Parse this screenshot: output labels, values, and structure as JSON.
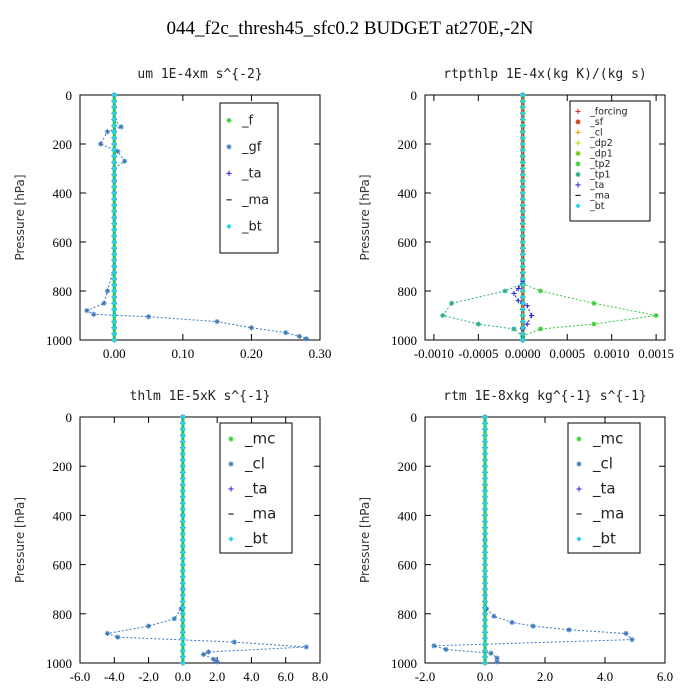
{
  "title": "044_f2c_thresh45_sfc0.2  BUDGET at270E,-2N",
  "chart_data": [
    {
      "type": "line",
      "title": "um   1E-4xm s^{-2}",
      "ylabel": "Pressure [hPa]",
      "xlim": [
        -0.05,
        0.3
      ],
      "ylim": [
        1000,
        0
      ],
      "xticks": [
        "0.00",
        "0.10",
        "0.20",
        "0.30"
      ],
      "xtick_values": [
        0,
        0.1,
        0.2,
        0.3
      ],
      "yticks": [
        "0",
        "200",
        "400",
        "600",
        "800",
        "1000"
      ],
      "legend_position": "top-right",
      "series": [
        {
          "name": "_f",
          "color": "#33cc33",
          "marker": "star",
          "x": [
            0,
            0,
            0,
            0,
            0,
            0,
            0,
            0,
            0,
            0,
            0
          ],
          "y": [
            0,
            100,
            200,
            300,
            400,
            500,
            600,
            700,
            800,
            900,
            1000
          ]
        },
        {
          "name": "_gf",
          "color": "#3a78c0",
          "marker": "asterisk",
          "x": [
            0,
            0,
            0.01,
            -0.01,
            -0.02,
            0.005,
            0.015,
            0,
            0,
            0,
            0,
            0,
            -0.01,
            -0.015,
            -0.04,
            -0.03,
            0.05,
            0.15,
            0.2,
            0.25,
            0.27,
            0.28
          ],
          "y": [
            0,
            100,
            130,
            150,
            200,
            230,
            270,
            300,
            350,
            400,
            500,
            700,
            800,
            850,
            880,
            895,
            905,
            925,
            950,
            970,
            985,
            995
          ]
        },
        {
          "name": "_ta",
          "color": "#2222dd",
          "marker": "plus",
          "x": [
            0,
            0,
            0,
            0
          ],
          "y": [
            0,
            300,
            700,
            1000
          ]
        },
        {
          "name": "_ma",
          "color": "#222222",
          "marker": "dash",
          "x": [
            0,
            0,
            0,
            0
          ],
          "y": [
            0,
            300,
            700,
            1000
          ]
        },
        {
          "name": "_bt",
          "color": "#22d3ee",
          "marker": "diamond",
          "x": [
            0,
            0,
            0,
            0,
            0,
            0,
            0,
            0,
            0,
            0,
            0
          ],
          "y": [
            0,
            100,
            200,
            300,
            400,
            500,
            600,
            700,
            800,
            900,
            1000
          ]
        }
      ]
    },
    {
      "type": "line",
      "title": "rtpthlp   1E-4x(kg K)/(kg s)",
      "ylabel": "Pressure [hPa]",
      "xlim": [
        -0.0011,
        0.0016
      ],
      "ylim": [
        1000,
        0
      ],
      "xticks": [
        "-0.0010",
        "-0.0005",
        "0.0000",
        "0.0005",
        "0.0010",
        "0.0015"
      ],
      "xtick_values": [
        -0.001,
        -0.0005,
        0,
        0.0005,
        0.001,
        0.0015
      ],
      "yticks": [
        "0",
        "200",
        "400",
        "600",
        "800",
        "1000"
      ],
      "legend_position": "top-right",
      "series": [
        {
          "name": "_forcing",
          "color": "#e11d1d",
          "marker": "plus",
          "x": [
            0,
            0,
            0,
            0,
            0,
            0,
            0,
            0,
            0,
            0,
            0
          ],
          "y": [
            0,
            100,
            200,
            300,
            400,
            500,
            600,
            700,
            800,
            900,
            1000
          ]
        },
        {
          "name": "_sf",
          "color": "#cc3300",
          "marker": "asterisk",
          "x": [
            0,
            0,
            0,
            0,
            0,
            0,
            0,
            0,
            0,
            0,
            0
          ],
          "y": [
            0,
            100,
            200,
            300,
            400,
            500,
            600,
            700,
            800,
            900,
            1000
          ]
        },
        {
          "name": "_cl",
          "color": "#e0a000",
          "marker": "plus",
          "x": [
            0,
            0,
            0
          ],
          "y": [
            0,
            500,
            1000
          ]
        },
        {
          "name": "_dp2",
          "color": "#cccc00",
          "marker": "plus",
          "x": [
            0,
            0,
            0
          ],
          "y": [
            0,
            500,
            1000
          ]
        },
        {
          "name": "_dp1",
          "color": "#66cc00",
          "marker": "asterisk",
          "x": [
            0,
            0,
            0
          ],
          "y": [
            0,
            500,
            1000
          ]
        },
        {
          "name": "_tp2",
          "color": "#33cc33",
          "marker": "star",
          "x": [
            0,
            0,
            0,
            0,
            0.0002,
            0.0008,
            0.0015,
            0.0008,
            0.0002,
            0,
            0
          ],
          "y": [
            0,
            500,
            700,
            770,
            800,
            850,
            900,
            935,
            955,
            985,
            1000
          ]
        },
        {
          "name": "_tp1",
          "color": "#22aa88",
          "marker": "star",
          "x": [
            0,
            0,
            0,
            -0.0002,
            -0.0008,
            -0.0009,
            -0.0005,
            -0.0001,
            0,
            0
          ],
          "y": [
            0,
            500,
            770,
            800,
            850,
            900,
            935,
            955,
            985,
            1000
          ]
        },
        {
          "name": "_ta",
          "color": "#2222dd",
          "marker": "plus",
          "x": [
            0,
            0,
            -5e-05,
            -0.0001,
            -5e-05,
            5e-05,
            0.0001,
            5e-05,
            0,
            0
          ],
          "y": [
            0,
            760,
            790,
            810,
            840,
            860,
            900,
            935,
            955,
            1000
          ]
        },
        {
          "name": "_ma",
          "color": "#222222",
          "marker": "dash",
          "x": [
            0,
            0,
            0
          ],
          "y": [
            0,
            500,
            1000
          ]
        },
        {
          "name": "_bt",
          "color": "#22d3ee",
          "marker": "diamond",
          "x": [
            0,
            0,
            0
          ],
          "y": [
            0,
            500,
            1000
          ]
        }
      ]
    },
    {
      "type": "line",
      "title": "thlm   1E-5xK s^{-1}",
      "ylabel": "Pressure [hPa]",
      "xlim": [
        -6.0,
        8.0
      ],
      "ylim": [
        1000,
        0
      ],
      "xticks": [
        "-6.0",
        "-4.0",
        "-2.0",
        "0.0",
        "2.0",
        "4.0",
        "6.0",
        "8.0"
      ],
      "xtick_values": [
        -6,
        -4,
        -2,
        0,
        2,
        4,
        6,
        8
      ],
      "yticks": [
        "0",
        "200",
        "400",
        "600",
        "800",
        "1000"
      ],
      "legend_position": "top-right",
      "series": [
        {
          "name": "_mc",
          "color": "#33cc33",
          "marker": "star",
          "x": [
            0,
            0,
            0,
            0,
            0,
            0,
            0,
            0,
            0,
            0,
            0
          ],
          "y": [
            0,
            100,
            200,
            300,
            400,
            500,
            600,
            700,
            800,
            900,
            1000
          ]
        },
        {
          "name": "_cl",
          "color": "#3a78c0",
          "marker": "asterisk",
          "x": [
            0,
            0,
            0,
            -0.1,
            -0.5,
            -2.0,
            -4.4,
            -3.8,
            3.0,
            7.2,
            1.5,
            1.2,
            1.8,
            2.0
          ],
          "y": [
            0,
            400,
            700,
            780,
            820,
            850,
            880,
            895,
            915,
            935,
            955,
            965,
            985,
            995
          ]
        },
        {
          "name": "_ta",
          "color": "#2222dd",
          "marker": "plus",
          "x": [
            0,
            0,
            0
          ],
          "y": [
            0,
            500,
            1000
          ]
        },
        {
          "name": "_ma",
          "color": "#222222",
          "marker": "dash",
          "x": [
            0,
            0,
            0
          ],
          "y": [
            0,
            500,
            1000
          ]
        },
        {
          "name": "_bt",
          "color": "#22d3ee",
          "marker": "diamond",
          "x": [
            0,
            0,
            0,
            0,
            0,
            0,
            0,
            0,
            0,
            0,
            0
          ],
          "y": [
            0,
            100,
            200,
            300,
            400,
            500,
            600,
            700,
            800,
            900,
            1000
          ]
        }
      ]
    },
    {
      "type": "line",
      "title": "rtm   1E-8xkg kg^{-1} s^{-1}",
      "ylabel": "Pressure [hPa]",
      "xlim": [
        -2.0,
        6.0
      ],
      "ylim": [
        1000,
        0
      ],
      "xticks": [
        "-2.0",
        "0.0",
        "2.0",
        "4.0",
        "6.0"
      ],
      "xtick_values": [
        -2,
        0,
        2,
        4,
        6
      ],
      "yticks": [
        "0",
        "200",
        "400",
        "600",
        "800",
        "1000"
      ],
      "legend_position": "top-right",
      "series": [
        {
          "name": "_mc",
          "color": "#33cc33",
          "marker": "star",
          "x": [
            0,
            0,
            0,
            0,
            0,
            0,
            0,
            0,
            0,
            0,
            0
          ],
          "y": [
            0,
            100,
            200,
            300,
            400,
            500,
            600,
            700,
            800,
            900,
            1000
          ]
        },
        {
          "name": "_cl",
          "color": "#3a78c0",
          "marker": "asterisk",
          "x": [
            0,
            0,
            0.05,
            0.3,
            0.9,
            1.6,
            2.8,
            4.7,
            4.9,
            -1.7,
            -1.3,
            0.2,
            0.4,
            0.4
          ],
          "y": [
            0,
            500,
            780,
            810,
            835,
            850,
            865,
            880,
            905,
            930,
            945,
            960,
            980,
            995
          ]
        },
        {
          "name": "_ta",
          "color": "#2222dd",
          "marker": "plus",
          "x": [
            0,
            0,
            0
          ],
          "y": [
            0,
            500,
            1000
          ]
        },
        {
          "name": "_ma",
          "color": "#222222",
          "marker": "dash",
          "x": [
            0,
            0,
            0
          ],
          "y": [
            0,
            500,
            1000
          ]
        },
        {
          "name": "_bt",
          "color": "#22d3ee",
          "marker": "diamond",
          "x": [
            0,
            0,
            0,
            0,
            0,
            0,
            0,
            0,
            0,
            0,
            0
          ],
          "y": [
            0,
            100,
            200,
            300,
            400,
            500,
            600,
            700,
            800,
            900,
            1000
          ]
        }
      ]
    }
  ]
}
